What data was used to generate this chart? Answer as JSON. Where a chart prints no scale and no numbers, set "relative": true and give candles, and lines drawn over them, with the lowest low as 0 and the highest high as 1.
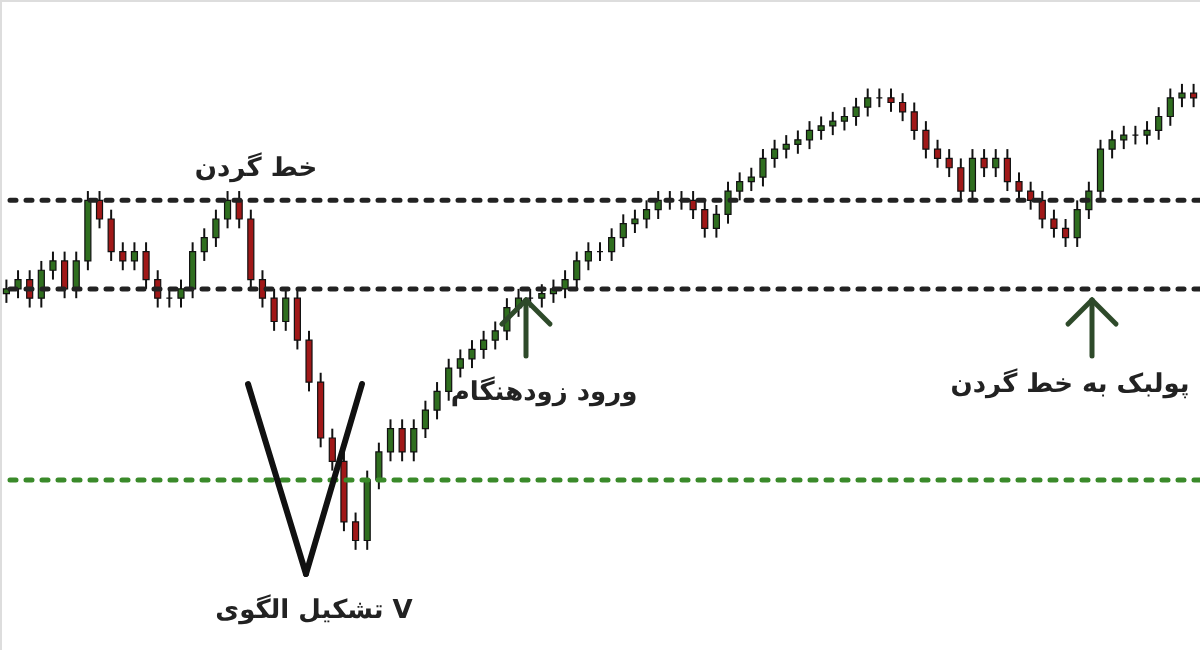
{
  "chart_data": {
    "type": "candlestick",
    "relative": true,
    "categories": [
      null,
      null,
      null,
      null,
      null,
      null,
      null,
      null,
      null,
      null,
      null,
      null,
      null,
      null,
      null,
      null,
      null,
      null,
      null,
      null,
      null,
      null,
      null,
      null,
      null,
      null,
      null,
      null,
      null,
      null,
      null,
      null,
      null,
      null,
      null,
      null,
      null,
      null,
      null,
      null,
      null,
      null,
      null,
      null,
      null,
      null,
      null,
      null,
      null,
      null,
      null,
      null,
      null,
      null,
      null,
      null,
      null,
      null,
      null,
      null,
      null,
      null,
      null,
      null,
      null,
      null,
      null,
      null,
      null,
      null,
      null,
      null,
      null,
      null,
      null,
      null,
      null,
      null,
      null,
      null,
      null,
      null,
      null,
      null,
      null,
      null,
      null,
      null,
      null,
      null,
      null,
      null,
      null,
      null,
      null,
      null,
      null,
      null,
      null,
      null,
      null,
      null,
      null
    ],
    "ohlc": [
      [
        0.55,
        0.58,
        0.53,
        0.56
      ],
      [
        0.56,
        0.6,
        0.54,
        0.58
      ],
      [
        0.58,
        0.6,
        0.52,
        0.54
      ],
      [
        0.54,
        0.62,
        0.52,
        0.6
      ],
      [
        0.6,
        0.64,
        0.58,
        0.62
      ],
      [
        0.62,
        0.64,
        0.54,
        0.56
      ],
      [
        0.56,
        0.64,
        0.54,
        0.62
      ],
      [
        0.62,
        0.77,
        0.6,
        0.75
      ],
      [
        0.75,
        0.77,
        0.69,
        0.71
      ],
      [
        0.71,
        0.73,
        0.62,
        0.64
      ],
      [
        0.64,
        0.66,
        0.6,
        0.62
      ],
      [
        0.62,
        0.66,
        0.6,
        0.64
      ],
      [
        0.64,
        0.66,
        0.56,
        0.58
      ],
      [
        0.58,
        0.6,
        0.52,
        0.54
      ],
      [
        0.54,
        0.56,
        0.52,
        0.54
      ],
      [
        0.54,
        0.58,
        0.52,
        0.56
      ],
      [
        0.56,
        0.66,
        0.54,
        0.64
      ],
      [
        0.64,
        0.69,
        0.62,
        0.67
      ],
      [
        0.67,
        0.73,
        0.65,
        0.71
      ],
      [
        0.71,
        0.77,
        0.69,
        0.75
      ],
      [
        0.75,
        0.77,
        0.69,
        0.71
      ],
      [
        0.71,
        0.73,
        0.56,
        0.58
      ],
      [
        0.58,
        0.6,
        0.52,
        0.54
      ],
      [
        0.54,
        0.56,
        0.47,
        0.49
      ],
      [
        0.49,
        0.56,
        0.47,
        0.54
      ],
      [
        0.54,
        0.56,
        0.43,
        0.45
      ],
      [
        0.45,
        0.47,
        0.34,
        0.36
      ],
      [
        0.36,
        0.38,
        0.22,
        0.24
      ],
      [
        0.24,
        0.26,
        0.17,
        0.19
      ],
      [
        0.19,
        0.21,
        0.04,
        0.06
      ],
      [
        0.06,
        0.08,
        0.0,
        0.02
      ],
      [
        0.02,
        0.17,
        0.0,
        0.15
      ],
      [
        0.15,
        0.23,
        0.13,
        0.21
      ],
      [
        0.21,
        0.28,
        0.19,
        0.26
      ],
      [
        0.26,
        0.28,
        0.19,
        0.21
      ],
      [
        0.21,
        0.28,
        0.19,
        0.26
      ],
      [
        0.26,
        0.32,
        0.24,
        0.3
      ],
      [
        0.3,
        0.36,
        0.28,
        0.34
      ],
      [
        0.34,
        0.41,
        0.32,
        0.39
      ],
      [
        0.39,
        0.43,
        0.37,
        0.41
      ],
      [
        0.41,
        0.45,
        0.39,
        0.43
      ],
      [
        0.43,
        0.47,
        0.41,
        0.45
      ],
      [
        0.45,
        0.49,
        0.43,
        0.47
      ],
      [
        0.47,
        0.54,
        0.45,
        0.52
      ],
      [
        0.52,
        0.56,
        0.5,
        0.54
      ],
      [
        0.54,
        0.56,
        0.52,
        0.54
      ],
      [
        0.54,
        0.57,
        0.52,
        0.55
      ],
      [
        0.55,
        0.58,
        0.53,
        0.56
      ],
      [
        0.56,
        0.6,
        0.54,
        0.58
      ],
      [
        0.58,
        0.64,
        0.56,
        0.62
      ],
      [
        0.62,
        0.66,
        0.6,
        0.64
      ],
      [
        0.64,
        0.66,
        0.62,
        0.64
      ],
      [
        0.64,
        0.69,
        0.62,
        0.67
      ],
      [
        0.67,
        0.72,
        0.65,
        0.7
      ],
      [
        0.7,
        0.73,
        0.68,
        0.71
      ],
      [
        0.71,
        0.75,
        0.69,
        0.73
      ],
      [
        0.73,
        0.77,
        0.71,
        0.75
      ],
      [
        0.75,
        0.77,
        0.73,
        0.75
      ],
      [
        0.75,
        0.77,
        0.73,
        0.75
      ],
      [
        0.75,
        0.77,
        0.71,
        0.73
      ],
      [
        0.73,
        0.75,
        0.67,
        0.69
      ],
      [
        0.69,
        0.74,
        0.67,
        0.72
      ],
      [
        0.72,
        0.79,
        0.7,
        0.77
      ],
      [
        0.77,
        0.81,
        0.75,
        0.79
      ],
      [
        0.79,
        0.82,
        0.77,
        0.8
      ],
      [
        0.8,
        0.86,
        0.78,
        0.84
      ],
      [
        0.84,
        0.88,
        0.82,
        0.86
      ],
      [
        0.86,
        0.89,
        0.84,
        0.87
      ],
      [
        0.87,
        0.9,
        0.85,
        0.88
      ],
      [
        0.88,
        0.92,
        0.86,
        0.9
      ],
      [
        0.9,
        0.93,
        0.88,
        0.91
      ],
      [
        0.91,
        0.94,
        0.89,
        0.92
      ],
      [
        0.92,
        0.95,
        0.9,
        0.93
      ],
      [
        0.93,
        0.97,
        0.91,
        0.95
      ],
      [
        0.95,
        0.99,
        0.93,
        0.97
      ],
      [
        0.97,
        0.99,
        0.95,
        0.97
      ],
      [
        0.97,
        0.99,
        0.94,
        0.96
      ],
      [
        0.96,
        0.98,
        0.92,
        0.94
      ],
      [
        0.94,
        0.96,
        0.88,
        0.9
      ],
      [
        0.9,
        0.92,
        0.84,
        0.86
      ],
      [
        0.86,
        0.88,
        0.82,
        0.84
      ],
      [
        0.84,
        0.86,
        0.8,
        0.82
      ],
      [
        0.82,
        0.84,
        0.75,
        0.77
      ],
      [
        0.77,
        0.86,
        0.75,
        0.84
      ],
      [
        0.84,
        0.86,
        0.8,
        0.82
      ],
      [
        0.82,
        0.86,
        0.8,
        0.84
      ],
      [
        0.84,
        0.86,
        0.77,
        0.79
      ],
      [
        0.79,
        0.81,
        0.75,
        0.77
      ],
      [
        0.77,
        0.79,
        0.73,
        0.75
      ],
      [
        0.75,
        0.77,
        0.69,
        0.71
      ],
      [
        0.71,
        0.73,
        0.67,
        0.69
      ],
      [
        0.69,
        0.71,
        0.65,
        0.67
      ],
      [
        0.67,
        0.75,
        0.65,
        0.73
      ],
      [
        0.73,
        0.79,
        0.71,
        0.77
      ],
      [
        0.77,
        0.88,
        0.75,
        0.86
      ],
      [
        0.86,
        0.9,
        0.84,
        0.88
      ],
      [
        0.88,
        0.91,
        0.86,
        0.89
      ],
      [
        0.89,
        0.91,
        0.87,
        0.89
      ],
      [
        0.89,
        0.92,
        0.87,
        0.9
      ],
      [
        0.9,
        0.95,
        0.88,
        0.93
      ],
      [
        0.93,
        0.99,
        0.91,
        0.97
      ],
      [
        0.97,
        1.0,
        0.95,
        0.98
      ],
      [
        0.98,
        1.0,
        0.95,
        0.97
      ]
    ],
    "ref_lines": [
      {
        "axis": "y",
        "value": 0.75,
        "label": "خط گردن",
        "color": "#222222",
        "line_style": "dotted"
      },
      {
        "axis": "y",
        "value": 0.56,
        "color": "#222222",
        "line_style": "dotted"
      },
      {
        "axis": "y",
        "value": 0.15,
        "color": "#3a8a2a",
        "line_style": "dotted"
      }
    ],
    "annotations": [
      "ورود زودهنگام",
      "پولبک به خط گردن",
      "تشکیل الگوی V"
    ]
  }
}
